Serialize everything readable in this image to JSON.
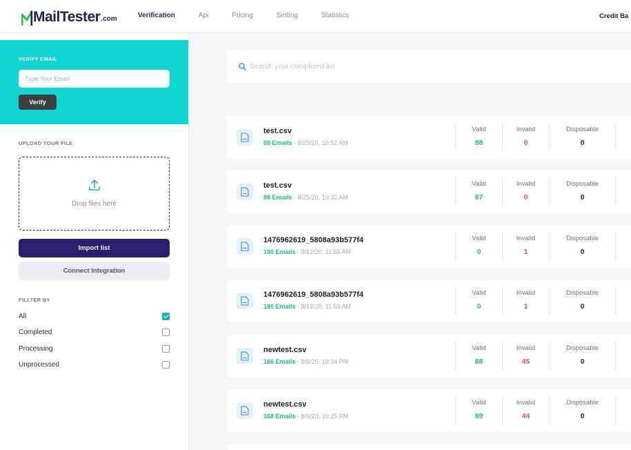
{
  "header": {
    "logo_main": "MailTester",
    "logo_suffix": ".com",
    "nav": [
      "Verification",
      "Api",
      "Pricing",
      "Setting",
      "Statistics"
    ],
    "active_nav": "Verification",
    "credit_label": "Credit Ba"
  },
  "sidebar": {
    "verify_title": "VERIFY EMAIL",
    "email_placeholder": "Type Your Email",
    "verify_label": "Verify",
    "upload_title": "UPLOAD YOUR FILE",
    "drop_text": "Drop files here",
    "import_label": "Import list",
    "connect_label": "Connect Integration",
    "filter_title": "FILLTER BY",
    "filters": [
      {
        "label": "All",
        "checked": true
      },
      {
        "label": "Completed",
        "checked": false
      },
      {
        "label": "Processing",
        "checked": false
      },
      {
        "label": "Unprocessed",
        "checked": false
      }
    ]
  },
  "main": {
    "search_placeholder": "Search your completed list",
    "stat_labels": {
      "valid": "Valid",
      "invalid": "Invalid",
      "disposable": "Disposable"
    },
    "lists": [
      {
        "name": "test.csv",
        "emails": "88 Emails",
        "date": " - 8/25/20, 10:52 AM",
        "valid": "88",
        "invalid": "0",
        "disposable": "0"
      },
      {
        "name": "test.csv",
        "emails": "88 Emails",
        "date": " - 8/25/20, 10:32 AM",
        "valid": "87",
        "invalid": "0",
        "disposable": "0"
      },
      {
        "name": "1476962619_5808a93b577f4",
        "emails": "180 Emails",
        "date": " - 8/12/20, 11:55 AM",
        "valid": "0",
        "invalid": "1",
        "disposable": "0"
      },
      {
        "name": "1476962619_5808a93b577f4",
        "emails": "180 Emails",
        "date": " - 8/12/20, 11:53 AM",
        "valid": "0",
        "invalid": "1",
        "disposable": "0"
      },
      {
        "name": "newtest.csv",
        "emails": "166 Emails",
        "date": " - 8/6/20, 10:34 PM",
        "valid": "88",
        "invalid": "45",
        "disposable": "0"
      },
      {
        "name": "newtest.csv",
        "emails": "168 Emails",
        "date": " - 8/6/20, 10:25 PM",
        "valid": "89",
        "invalid": "44",
        "disposable": "0"
      }
    ]
  },
  "colors": {
    "accent_teal": "#10d5d0",
    "primary_purple": "#2b1f6e",
    "valid_green": "#23c07b",
    "invalid_red": "#f0504f"
  }
}
